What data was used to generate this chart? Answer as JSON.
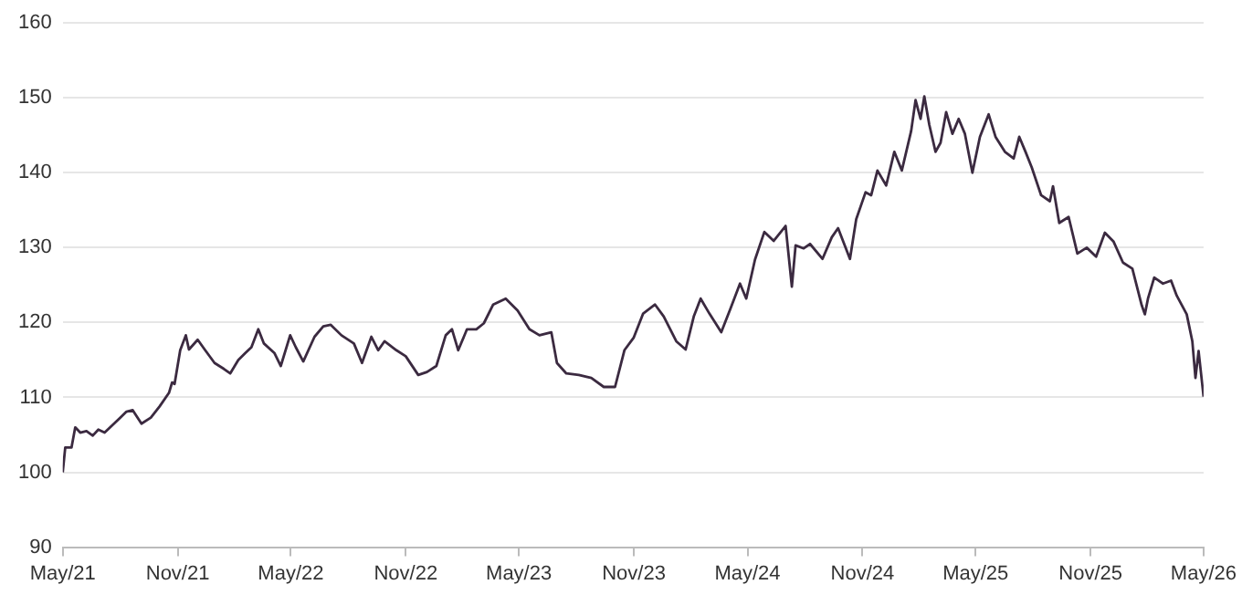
{
  "chart_data": {
    "type": "line",
    "x": [
      "2021-05-01",
      "2021-05-05",
      "2021-05-15",
      "2021-05-21",
      "2021-05-29",
      "2021-06-08",
      "2021-06-18",
      "2021-06-27",
      "2021-07-07",
      "2021-07-22",
      "2021-08-01",
      "2021-08-11",
      "2021-08-21",
      "2021-09-04",
      "2021-09-19",
      "2021-10-03",
      "2021-10-18",
      "2021-10-23",
      "2021-10-27",
      "2021-11-05",
      "2021-11-14",
      "2021-11-19",
      "2021-12-03",
      "2021-12-15",
      "2021-12-30",
      "2022-01-14",
      "2022-01-24",
      "2022-02-06",
      "2022-02-17",
      "2022-02-27",
      "2022-03-10",
      "2022-03-19",
      "2022-04-05",
      "2022-04-15",
      "2022-04-30",
      "2022-05-09",
      "2022-05-21",
      "2022-06-08",
      "2022-06-22",
      "2022-07-04",
      "2022-07-21",
      "2022-08-10",
      "2022-08-23",
      "2022-09-07",
      "2022-09-18",
      "2022-09-28",
      "2022-10-17",
      "2022-11-01",
      "2022-11-21",
      "2022-12-05",
      "2022-12-20",
      "2023-01-04",
      "2023-01-14",
      "2023-01-24",
      "2023-02-07",
      "2023-02-22",
      "2023-03-06",
      "2023-03-21",
      "2023-04-10",
      "2023-04-29",
      "2023-05-18",
      "2023-06-03",
      "2023-06-22",
      "2023-07-01",
      "2023-07-16",
      "2023-08-05",
      "2023-08-25",
      "2023-09-14",
      "2023-10-02",
      "2023-10-17",
      "2023-11-01",
      "2023-11-16",
      "2023-12-05",
      "2023-12-19",
      "2024-01-08",
      "2024-01-23",
      "2024-02-05",
      "2024-02-16",
      "2024-03-01",
      "2024-03-20",
      "2024-04-04",
      "2024-04-19",
      "2024-04-29",
      "2024-05-13",
      "2024-05-28",
      "2024-06-12",
      "2024-07-01",
      "2024-07-11",
      "2024-07-17",
      "2024-07-30",
      "2024-08-09",
      "2024-08-29",
      "2024-09-13",
      "2024-09-23",
      "2024-10-12",
      "2024-10-22",
      "2024-11-06",
      "2024-11-15",
      "2024-11-25",
      "2024-12-09",
      "2024-12-22",
      "2025-01-03",
      "2025-01-18",
      "2025-01-25",
      "2025-02-02",
      "2025-02-08",
      "2025-02-16",
      "2025-02-26",
      "2025-03-06",
      "2025-03-15",
      "2025-03-25",
      "2025-04-04",
      "2025-04-14",
      "2025-04-26",
      "2025-05-08",
      "2025-05-22",
      "2025-06-02",
      "2025-06-17",
      "2025-07-01",
      "2025-07-10",
      "2025-07-20",
      "2025-07-30",
      "2025-08-14",
      "2025-08-28",
      "2025-09-02",
      "2025-09-12",
      "2025-09-27",
      "2025-10-11",
      "2025-10-26",
      "2025-11-10",
      "2025-11-24",
      "2025-12-08",
      "2025-12-23",
      "2026-01-07",
      "2026-01-22",
      "2026-01-27",
      "2026-02-01",
      "2026-02-11",
      "2026-02-25",
      "2026-03-10",
      "2026-03-19",
      "2026-04-04",
      "2026-04-13",
      "2026-04-18",
      "2026-04-23",
      "2026-05-01"
    ],
    "series": [
      {
        "color": "#3b2a40",
        "values": [
          100,
          103.3,
          103.3,
          106,
          105.3,
          105.5,
          104.9,
          105.7,
          105.3,
          106.5,
          107.3,
          108.1,
          108.3,
          106.5,
          107.3,
          108.8,
          110.6,
          112,
          111.8,
          116.3,
          118.3,
          116.4,
          117.7,
          116.3,
          114.6,
          113.8,
          113.2,
          115,
          115.9,
          116.7,
          119.1,
          117.2,
          115.9,
          114.2,
          118.3,
          116.7,
          114.8,
          118.1,
          119.5,
          119.7,
          118.3,
          117.2,
          114.6,
          118.1,
          116.3,
          117.5,
          116.3,
          115.5,
          113,
          113.4,
          114.2,
          118.3,
          119.1,
          116.3,
          119.1,
          119.1,
          119.9,
          122.4,
          123.2,
          121.6,
          119.1,
          118.3,
          118.7,
          114.6,
          113.2,
          113,
          112.6,
          111.4,
          111.4,
          116.3,
          118,
          121.2,
          122.4,
          120.8,
          117.5,
          116.4,
          120.8,
          123.2,
          121.2,
          118.7,
          121.9,
          125.2,
          123.2,
          128.4,
          132.1,
          130.9,
          132.9,
          124.8,
          130.3,
          129.9,
          130.5,
          128.5,
          131.4,
          132.6,
          128.5,
          133.8,
          137.4,
          137,
          140.3,
          138.3,
          142.8,
          140.3,
          145.6,
          149.7,
          147.2,
          150.2,
          146.4,
          142.8,
          144,
          148.1,
          145.2,
          147.2,
          145.2,
          140,
          144.8,
          147.8,
          144.8,
          142.8,
          141.9,
          144.8,
          142.8,
          140.7,
          137,
          136.2,
          138.2,
          133.3,
          134.1,
          129.2,
          130,
          128.8,
          132,
          130.8,
          128,
          127.2,
          122.3,
          121.1,
          123.2,
          126,
          125.2,
          125.6,
          123.6,
          121.1,
          117.5,
          112.6,
          116.2,
          110.1
        ]
      }
    ],
    "xlim": [
      "2021-05-01",
      "2026-05-01"
    ],
    "xticks": [
      {
        "value": "2021-05-01",
        "label": "May/21"
      },
      {
        "value": "2021-11-01",
        "label": "Nov/21"
      },
      {
        "value": "2022-05-01",
        "label": "May/22"
      },
      {
        "value": "2022-11-01",
        "label": "Nov/22"
      },
      {
        "value": "2023-05-01",
        "label": "May/23"
      },
      {
        "value": "2023-11-01",
        "label": "Nov/23"
      },
      {
        "value": "2024-05-01",
        "label": "May/24"
      },
      {
        "value": "2024-11-01",
        "label": "Nov/24"
      },
      {
        "value": "2025-05-01",
        "label": "May/25"
      },
      {
        "value": "2025-11-01",
        "label": "Nov/25"
      },
      {
        "value": "2026-05-01",
        "label": "May/26"
      }
    ],
    "ylim": [
      90,
      160
    ],
    "yticks": [
      90,
      100,
      110,
      120,
      130,
      140,
      150,
      160
    ],
    "grid": "y",
    "legend": false,
    "marker": "none",
    "line_style": "solid"
  }
}
